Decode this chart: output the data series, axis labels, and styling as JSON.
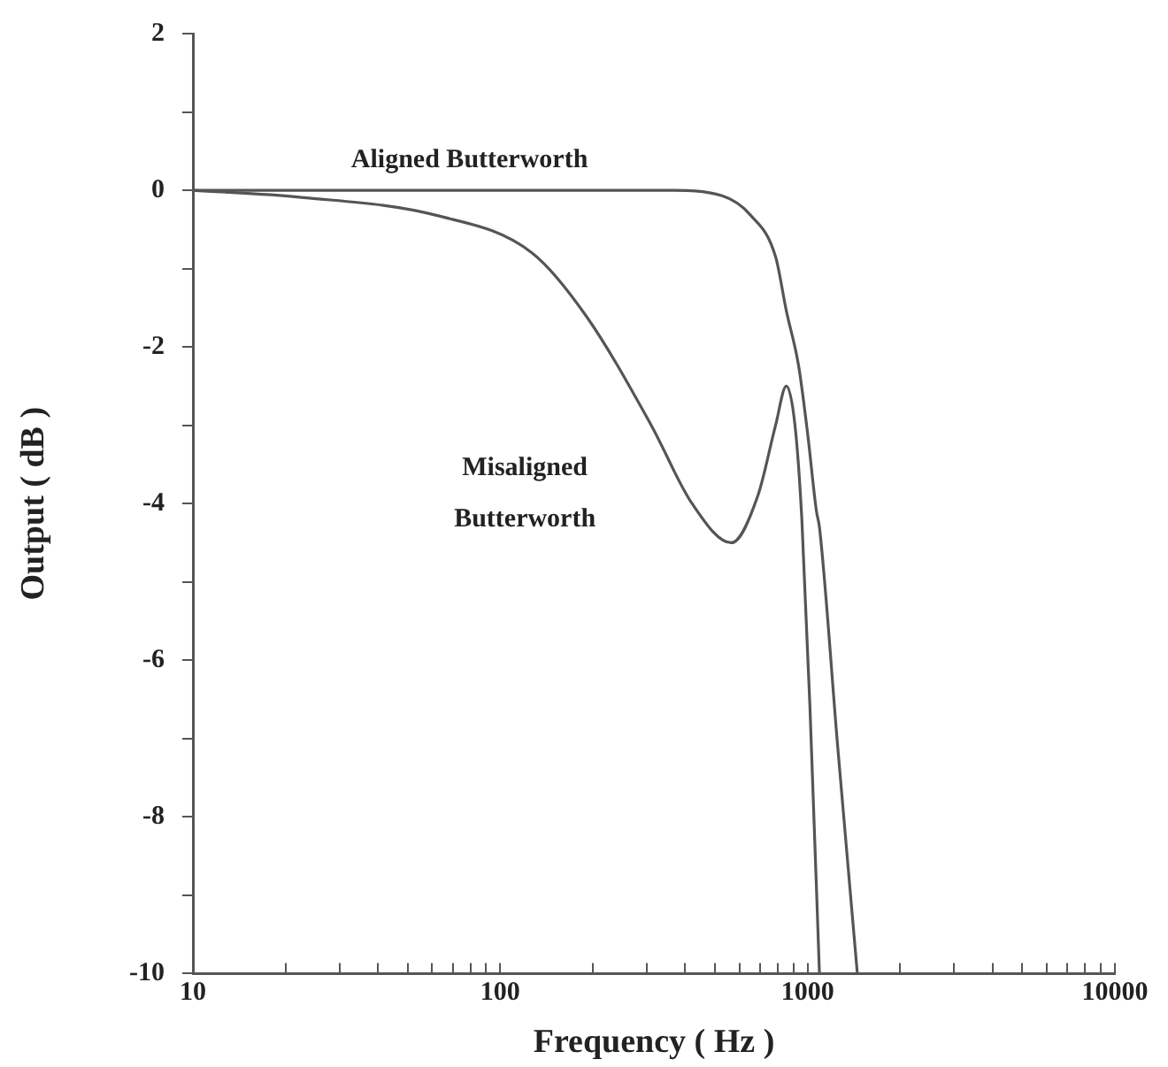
{
  "chart_data": {
    "type": "line",
    "xlabel": "Frequency ( Hz )",
    "ylabel": "Output ( dB )",
    "log": "x",
    "grid": false,
    "legend": false,
    "marker": "none",
    "line_style": "solid",
    "xlim": [
      10,
      10000
    ],
    "ylim": [
      -10,
      2
    ],
    "xticks": [
      10,
      {
        "value": 20,
        "label": null
      },
      {
        "value": 30,
        "label": null
      },
      {
        "value": 40,
        "label": null
      },
      {
        "value": 50,
        "label": null
      },
      {
        "value": 60,
        "label": null
      },
      {
        "value": 70,
        "label": null
      },
      {
        "value": 80,
        "label": null
      },
      {
        "value": 90,
        "label": null
      },
      100,
      {
        "value": 200,
        "label": null
      },
      {
        "value": 300,
        "label": null
      },
      {
        "value": 400,
        "label": null
      },
      {
        "value": 500,
        "label": null
      },
      {
        "value": 600,
        "label": null
      },
      {
        "value": 700,
        "label": null
      },
      {
        "value": 800,
        "label": null
      },
      {
        "value": 900,
        "label": null
      },
      1000,
      {
        "value": 2000,
        "label": null
      },
      {
        "value": 3000,
        "label": null
      },
      {
        "value": 4000,
        "label": null
      },
      {
        "value": 5000,
        "label": null
      },
      {
        "value": 6000,
        "label": null
      },
      {
        "value": 7000,
        "label": null
      },
      {
        "value": 8000,
        "label": null
      },
      {
        "value": 9000,
        "label": null
      },
      10000
    ],
    "yticks": [
      -10,
      {
        "value": -9,
        "label": null
      },
      -8,
      {
        "value": -7,
        "label": null
      },
      -6,
      {
        "value": -5,
        "label": null
      },
      -4,
      {
        "value": -3,
        "label": null
      },
      -2,
      {
        "value": -1,
        "label": null
      },
      0,
      {
        "value": 1,
        "label": null
      },
      2
    ],
    "series": [
      {
        "name": "Aligned Butterworth",
        "color": "#555555",
        "x": [
          10,
          100,
          200,
          354,
          527,
          653,
          787,
          853,
          935,
          1000,
          1069,
          1093,
          1253,
          1452
        ],
        "values": [
          0,
          0,
          0,
          0,
          -0.07,
          -0.32,
          -0.85,
          -1.54,
          -2.24,
          -3.1,
          -4.1,
          -4.3,
          -7.1,
          -10
        ]
      },
      {
        "name": "Misaligned Butterworth",
        "color": "#555555",
        "x": [
          10,
          22.5,
          62,
          127,
          190,
          310,
          421,
          565,
          689,
          787,
          853,
          910,
          958,
          1018,
          1093
        ],
        "values": [
          0,
          -0.09,
          -0.32,
          -0.8,
          -1.6,
          -3.0,
          -4.0,
          -4.5,
          -3.9,
          -3.0,
          -2.5,
          -3.0,
          -4.2,
          -6.6,
          -10
        ]
      }
    ]
  }
}
